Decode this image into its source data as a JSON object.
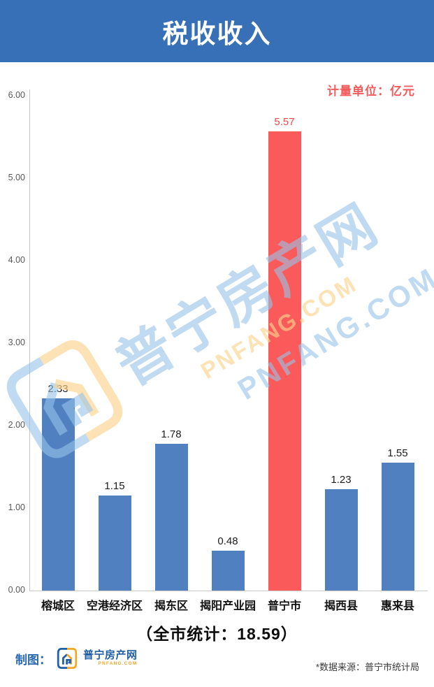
{
  "header": {
    "title": "税收收入"
  },
  "chart": {
    "unit_label": "计量单位：亿元",
    "total_label": "（全市统计：18.59）"
  },
  "chart_data": {
    "type": "bar",
    "title": "税收收入",
    "categories": [
      "榕城区",
      "空港经济区",
      "揭东区",
      "揭阳产业园",
      "普宁市",
      "揭西县",
      "惠来县"
    ],
    "values": [
      2.33,
      1.15,
      1.78,
      0.48,
      5.57,
      1.23,
      1.55
    ],
    "value_labels": [
      "2.33",
      "1.15",
      "1.78",
      "0.48",
      "5.57",
      "1.23",
      "1.55"
    ],
    "highlight_index": 4,
    "unit": "亿元",
    "citywide_total": 18.59,
    "ylim": [
      0,
      6
    ],
    "ytick_labels": [
      "0.00",
      "1.00",
      "2.00",
      "3.00",
      "4.00",
      "5.00",
      "6.00"
    ],
    "grid": false,
    "legend_position": "none",
    "bar_color": "#5080C0",
    "highlight_color": "#FB5A5A"
  },
  "watermark": {
    "site_name_cn": "普宁房产网",
    "site_name_en": "PNFANG.COM"
  },
  "footer": {
    "credit_label": "制图：",
    "logo_cn": "普宁房产网",
    "logo_en": "PNFANG.COM",
    "source_note": "*数据来源：普宁市统计局"
  },
  "colors": {
    "banner_blue": "#3770B7",
    "bar_blue": "#5080C0",
    "highlight_red": "#FB5A5A",
    "unit_text_red": "#F25C5C",
    "logo_blue": "#1F5FA8",
    "logo_orange": "#F5A623"
  }
}
